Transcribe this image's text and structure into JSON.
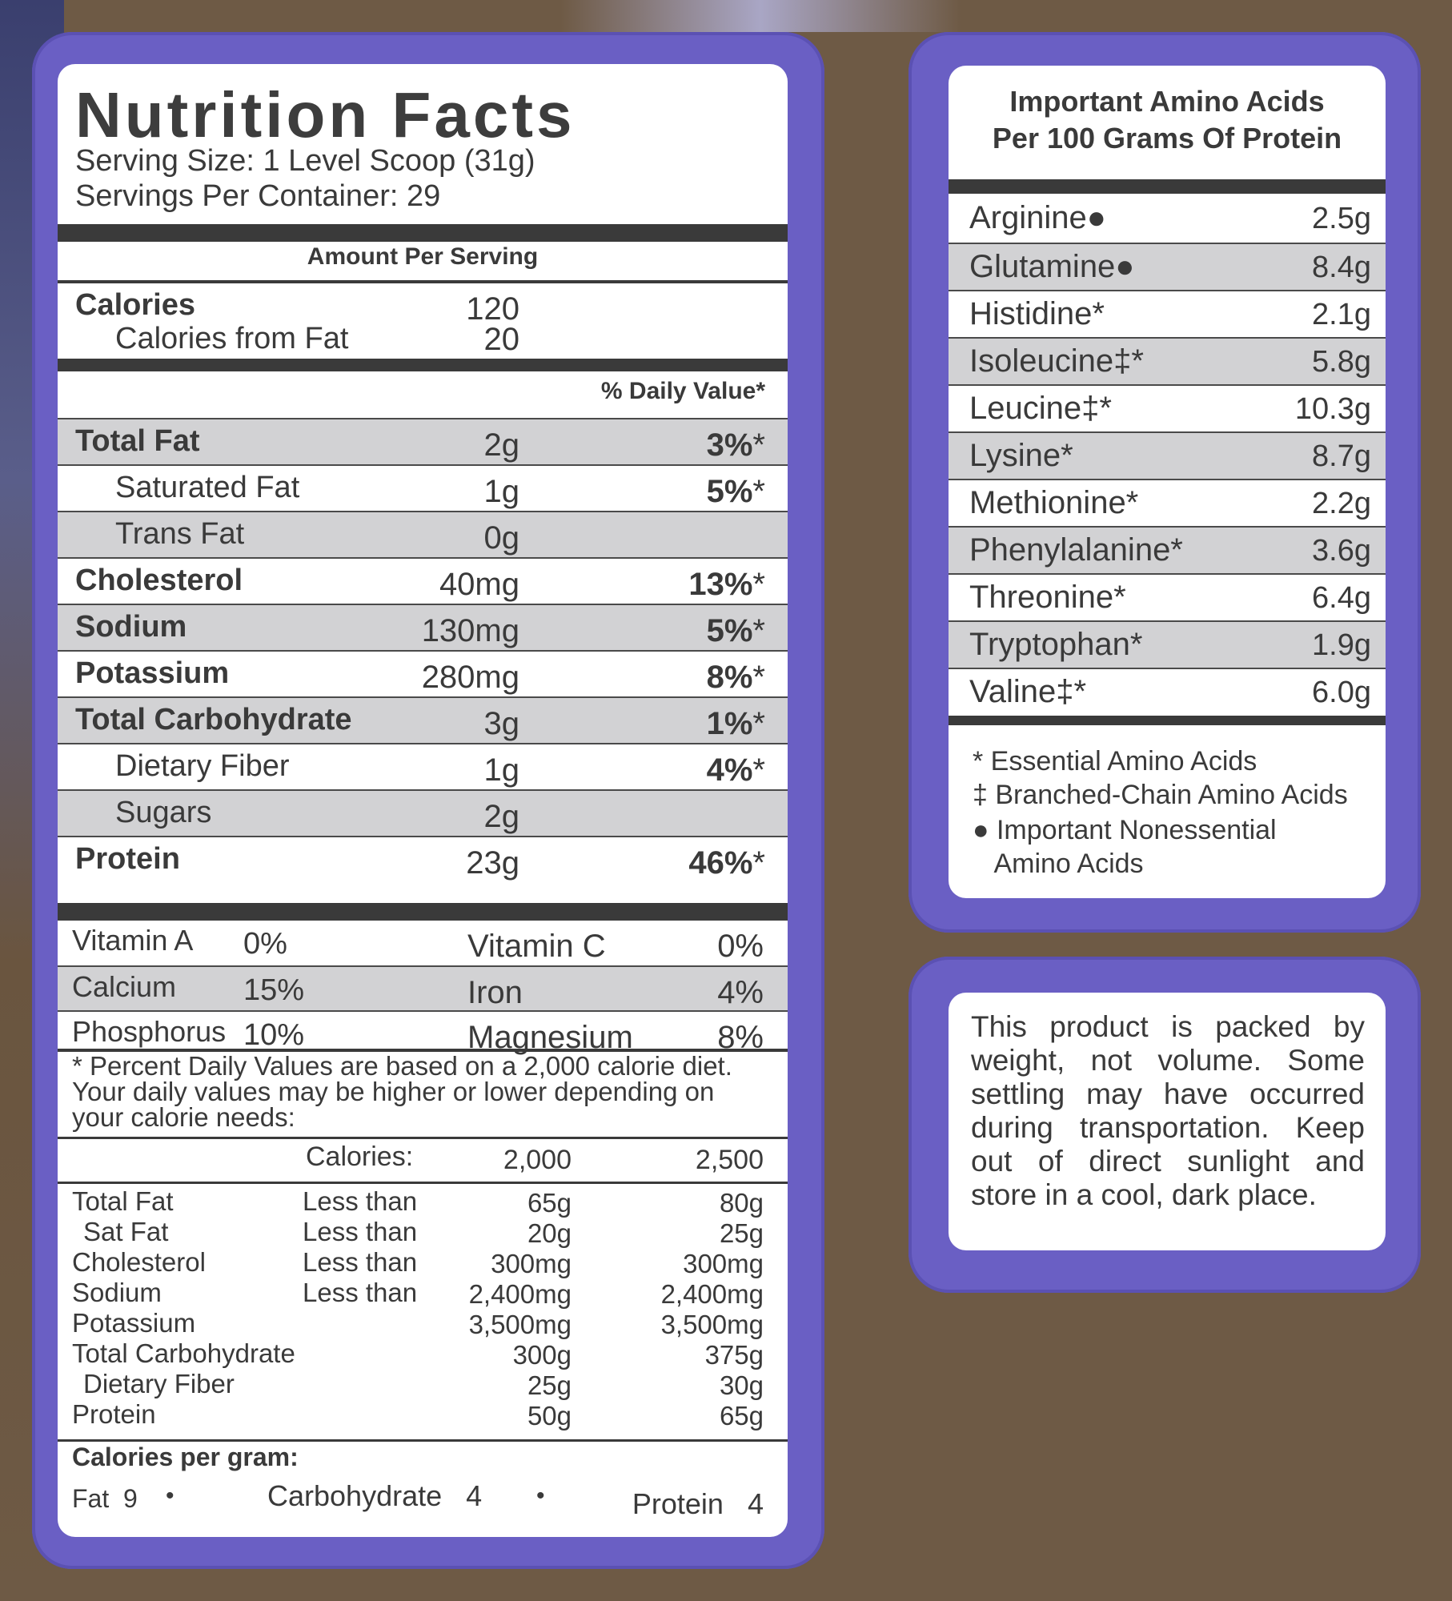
{
  "nutrition": {
    "title": "Nutrition Facts",
    "serving_size": "Serving Size: 1 Level Scoop (31g)",
    "servings_per_container": "Servings Per Container: 29",
    "amount_per_serving": "Amount Per Serving",
    "calories_label": "Calories",
    "calories_value": "120",
    "calories_fat_label": "Calories from Fat",
    "calories_fat_value": "20",
    "daily_value_header": "% Daily Value*",
    "rows": [
      {
        "label": "Total Fat",
        "amount": "2g",
        "dv": "3%",
        "mark": "*"
      },
      {
        "label": "Saturated Fat",
        "amount": "1g",
        "dv": "5%",
        "mark": "*"
      },
      {
        "label": "Trans Fat",
        "amount": "0g",
        "dv": "",
        "mark": ""
      },
      {
        "label": "Cholesterol",
        "amount": "40mg",
        "dv": "13%",
        "mark": "*"
      },
      {
        "label": "Sodium",
        "amount": "130mg",
        "dv": "5%",
        "mark": "*"
      },
      {
        "label": "Potassium",
        "amount": "280mg",
        "dv": "8%",
        "mark": "*"
      },
      {
        "label": "Total Carbohydrate",
        "amount": "3g",
        "dv": "1%",
        "mark": "*"
      },
      {
        "label": "Dietary Fiber",
        "amount": "1g",
        "dv": "4%",
        "mark": "*"
      },
      {
        "label": "Sugars",
        "amount": "2g",
        "dv": "",
        "mark": ""
      },
      {
        "label": "Protein",
        "amount": "23g",
        "dv": "46%",
        "mark": "*"
      }
    ],
    "vitamins": [
      {
        "left_label": "Vitamin A",
        "left_value": "0%",
        "right_label": "Vitamin C",
        "right_value": "0%"
      },
      {
        "left_label": "Calcium",
        "left_value": "15%",
        "right_label": "Iron",
        "right_value": "4%"
      },
      {
        "left_label": "Phosphorus",
        "left_value": "10%",
        "right_label": "Magnesium",
        "right_value": "8%"
      }
    ],
    "footnote_lines": [
      "* Percent Daily Values are based on a 2,000 calorie diet.",
      "Your daily values may be higher or lower depending on",
      "your calorie needs:"
    ],
    "ref_header": {
      "label": "Calories:",
      "col1": "2,000",
      "col2": "2,500"
    },
    "ref_labels": [
      "Total Fat",
      "Sat Fat",
      "Cholesterol",
      "Sodium",
      "Potassium",
      "Total Carbohydrate",
      "Dietary Fiber",
      "Protein"
    ],
    "ref_qualifiers": [
      "Less than",
      "Less than",
      "Less than",
      "Less than"
    ],
    "ref_col1": [
      "65g",
      "20g",
      "300mg",
      "2,400mg",
      "3,500mg",
      "300g",
      "25g",
      "50g"
    ],
    "ref_col2": [
      "80g",
      "25g",
      "300mg",
      "2,400mg",
      "3,500mg",
      "375g",
      "30g",
      "65g"
    ],
    "cal_per_gram_label": "Calories per gram:",
    "cal_per_gram": {
      "fat_label": "Fat",
      "fat_value": "9",
      "carb_label": "Carbohydrate",
      "carb_value": "4",
      "protein_label": "Protein",
      "protein_value": "4",
      "separator": "•"
    }
  },
  "amino": {
    "heading_line1": "Important Amino Acids",
    "heading_line2": "Per 100 Grams Of Protein",
    "rows": [
      {
        "name": "Arginine●",
        "value": "2.5g"
      },
      {
        "name": "Glutamine●",
        "value": "8.4g"
      },
      {
        "name": "Histidine*",
        "value": "2.1g"
      },
      {
        "name": "Isoleucine‡*",
        "value": "5.8g"
      },
      {
        "name": "Leucine‡*",
        "value": "10.3g"
      },
      {
        "name": "Lysine*",
        "value": "8.7g"
      },
      {
        "name": "Methionine*",
        "value": "2.2g"
      },
      {
        "name": "Phenylalanine*",
        "value": "3.6g"
      },
      {
        "name": "Threonine*",
        "value": "6.4g"
      },
      {
        "name": "Tryptophan*",
        "value": "1.9g"
      },
      {
        "name": "Valine‡*",
        "value": "6.0g"
      }
    ],
    "legend": [
      "* Essential Amino Acids",
      "‡ Branched-Chain Amino Acids",
      "● Important Nonessential",
      "   Amino Acids"
    ]
  },
  "note": {
    "text": "This product is packed by weight, not volume. Some settling may have occurred during transportation. Keep out of direct sunlight and store in a cool, dark place."
  }
}
